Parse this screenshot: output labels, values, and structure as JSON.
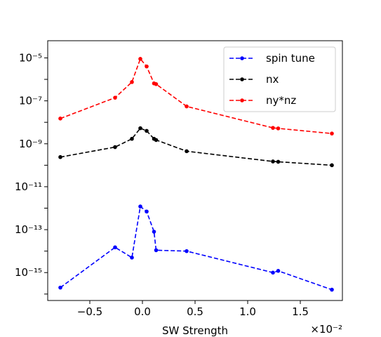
{
  "chart_data": {
    "type": "line",
    "title": "",
    "xlabel": "SW Strength",
    "x_offset_text": "×10⁻²",
    "x_scale_note": "x values in units of 1e-2",
    "ylabel": "",
    "yscale": "log",
    "xlim": [
      -0.9,
      1.9
    ],
    "ylim_exp": [
      -16.3,
      -4.2
    ],
    "grid": false,
    "legend_position": "top-right",
    "x_ticks": [
      -0.5,
      0.0,
      0.5,
      1.0,
      1.5
    ],
    "x_tick_labels": [
      "−0.5",
      "0.0",
      "0.5",
      "1.0",
      "1.5"
    ],
    "y_tick_exponents": [
      -15,
      -13,
      -11,
      -9,
      -7,
      -5
    ],
    "y_tick_labels": [
      "10⁻¹⁵",
      "10⁻¹³",
      "10⁻¹¹",
      "10⁻⁹",
      "10⁻⁷",
      "10⁻⁵"
    ],
    "series": [
      {
        "name": "spin tune",
        "color": "#0000ff",
        "x": [
          -0.78,
          -0.26,
          -0.1,
          -0.02,
          0.04,
          0.11,
          0.13,
          0.42,
          1.24,
          1.29,
          1.8
        ],
        "y": [
          2e-16,
          1.5e-14,
          5e-15,
          1.2e-12,
          7e-13,
          8e-14,
          1.1e-14,
          1e-14,
          1e-15,
          1.2e-15,
          1.6e-16
        ]
      },
      {
        "name": "nx",
        "color": "#000000",
        "x": [
          -0.78,
          -0.26,
          -0.1,
          -0.02,
          0.04,
          0.11,
          0.13,
          0.42,
          1.24,
          1.29,
          1.8
        ],
        "y": [
          2.4e-10,
          7e-10,
          1.7e-09,
          5.3e-09,
          4e-09,
          1.7e-09,
          1.5e-09,
          4.5e-10,
          1.5e-10,
          1.45e-10,
          1e-10
        ]
      },
      {
        "name": "ny*nz",
        "color": "#ff0000",
        "x": [
          -0.78,
          -0.26,
          -0.1,
          -0.02,
          0.04,
          0.11,
          0.13,
          0.42,
          1.24,
          1.29,
          1.8
        ],
        "y": [
          1.5e-08,
          1.4e-07,
          7.5e-07,
          9e-06,
          4e-06,
          6.5e-07,
          6e-07,
          5.5e-08,
          5.5e-09,
          5.2e-09,
          3e-09
        ]
      }
    ]
  }
}
